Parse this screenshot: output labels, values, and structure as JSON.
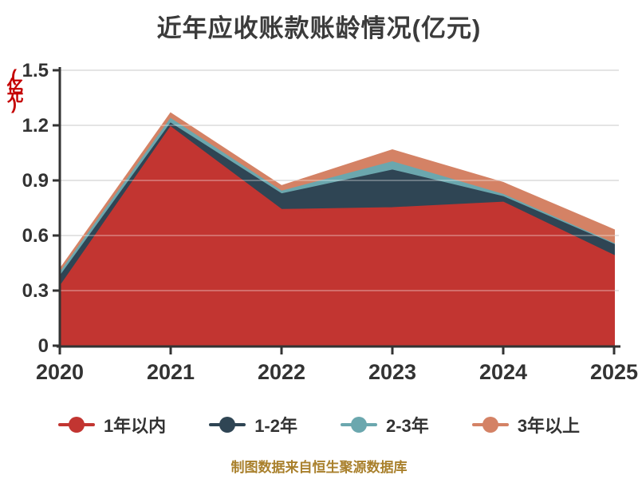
{
  "title": "近年应收账款账龄情况(亿元)",
  "y_axis_name": "(亿元)",
  "source_note": "制图数据来自恒生聚源数据库",
  "colors": {
    "title_text": "#3b3b3b",
    "axis_line": "#333333",
    "axis_label": "#333333",
    "gridline": "#cccccc",
    "y_axis_name_text": "#c40000",
    "source_text": "#a9802c",
    "background": "#ffffff"
  },
  "chart_data": {
    "type": "area",
    "stacked": true,
    "title": "近年应收账款账龄情况(亿元)",
    "x": [
      "2020",
      "2021",
      "2022",
      "2023",
      "2024",
      "2025"
    ],
    "series": [
      {
        "name": "1年以内",
        "color": "#c23531",
        "values": [
          0.32,
          1.19,
          0.74,
          0.75,
          0.78,
          0.49
        ]
      },
      {
        "name": "1-2年",
        "color": "#2f4554",
        "values": [
          0.055,
          0.02,
          0.085,
          0.205,
          0.03,
          0.06
        ]
      },
      {
        "name": "2-3年",
        "color": "#6ba7ae",
        "values": [
          0.02,
          0.025,
          0.015,
          0.045,
          0.012,
          0.005
        ]
      },
      {
        "name": "3年以上",
        "color": "#d48265",
        "values": [
          0.02,
          0.03,
          0.03,
          0.065,
          0.065,
          0.075
        ]
      }
    ],
    "ylim": [
      0,
      1.5
    ],
    "yticks": [
      "0",
      "0.3",
      "0.6",
      "0.9",
      "1.2",
      "1.5"
    ],
    "ylabel": "(亿元)",
    "xlabel": "",
    "grid": true,
    "legend_position": "bottom",
    "legend": [
      "1年以内",
      "1-2年",
      "2-3年",
      "3年以上"
    ]
  }
}
